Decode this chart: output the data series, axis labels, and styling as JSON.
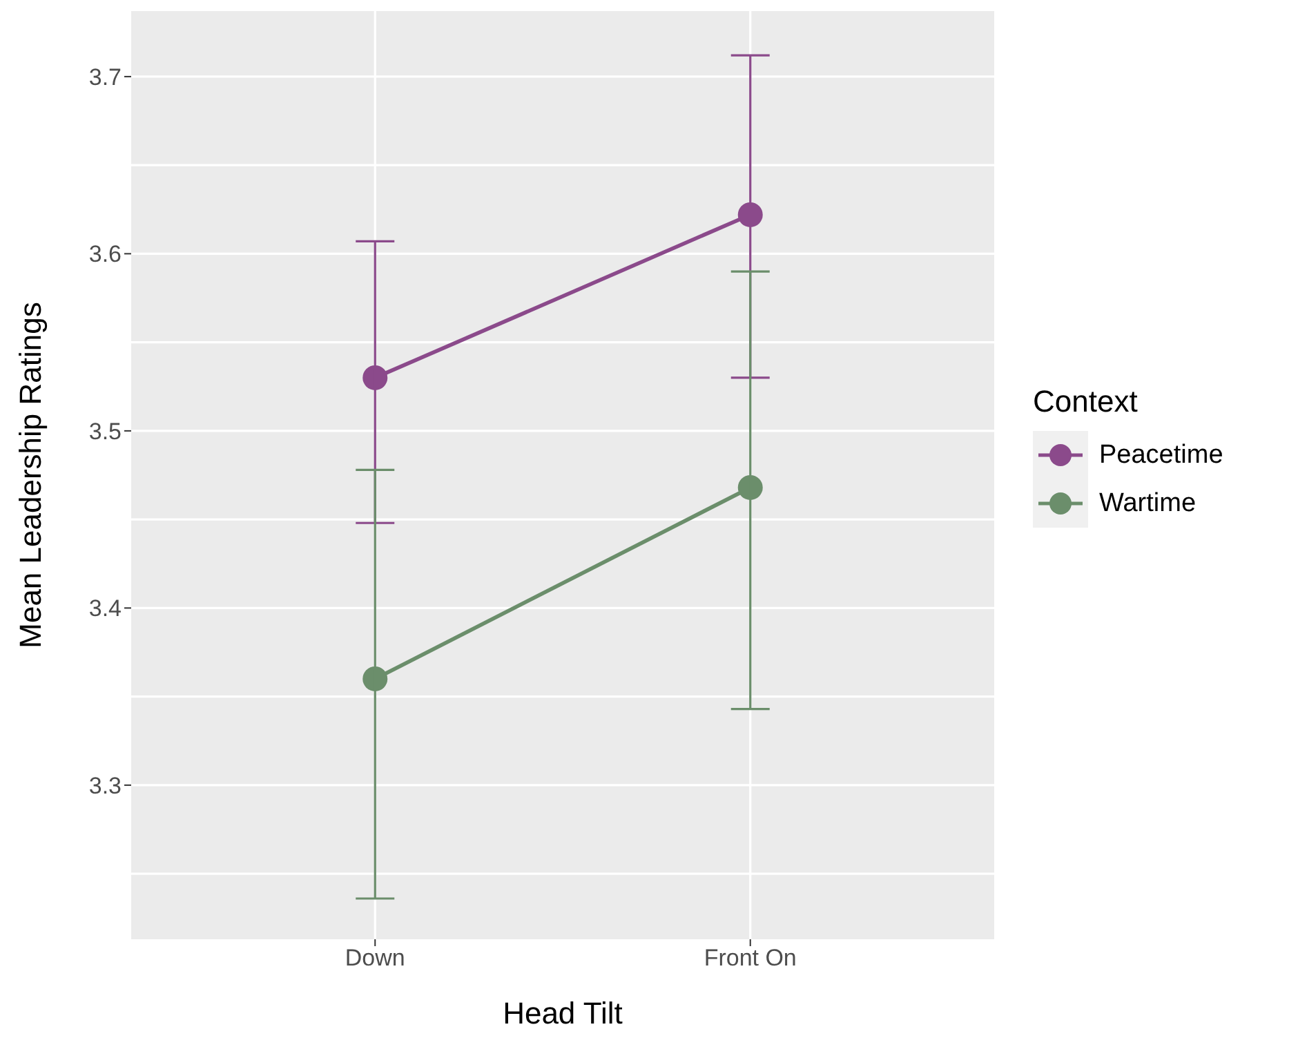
{
  "chart_data": {
    "type": "line",
    "xlabel": "Head Tilt",
    "ylabel": "Mean Leadership Ratings",
    "legend_title": "Context",
    "categories": [
      "Down",
      "Front On"
    ],
    "series": [
      {
        "name": "Peacetime",
        "color": "#8b4a8b",
        "values": [
          3.53,
          3.622
        ],
        "errors": [
          [
            3.448,
            3.607
          ],
          [
            3.53,
            3.712
          ]
        ]
      },
      {
        "name": "Wartime",
        "color": "#6b8e6b",
        "values": [
          3.36,
          3.468
        ],
        "errors": [
          [
            3.236,
            3.478
          ],
          [
            3.343,
            3.59
          ]
        ]
      }
    ],
    "ylim": [
      3.213,
      3.737
    ],
    "yticks": [
      3.3,
      3.4,
      3.5,
      3.6,
      3.7
    ],
    "grid": true,
    "legend": "right",
    "marker": "circle",
    "line_style": "solid"
  }
}
